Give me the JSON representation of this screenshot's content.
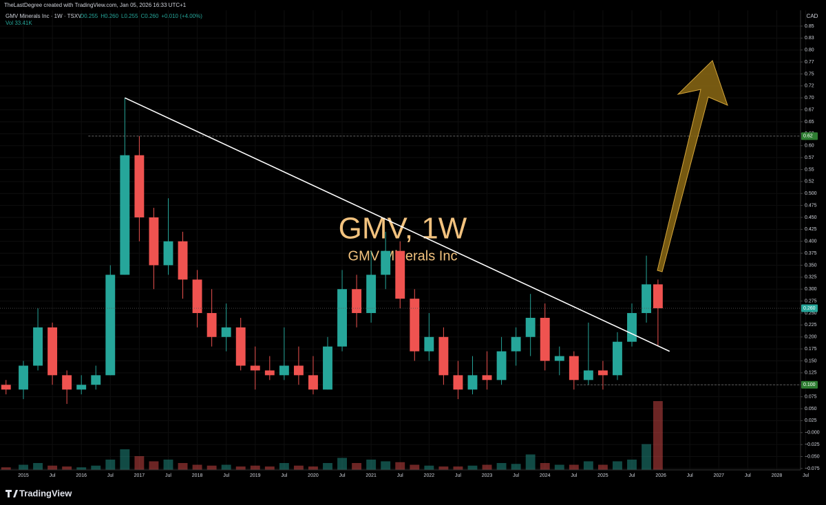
{
  "header": {
    "credit": "TheLastDegree created with TradingView.com, Jan 05, 2026 16:33 UTC+1",
    "symbol": "GMV Minerals Inc · 1W · TSXV",
    "ohlc": [
      "O0.255",
      "H0.260",
      "L0.255",
      "C0.260",
      "+0.010 (+4.00%)"
    ],
    "volume": "Vol 33.41K",
    "currency": "CAD"
  },
  "watermark": {
    "title": "GMV, 1W",
    "subtitle": "GMV Minerals Inc"
  },
  "footer": {
    "brand": "TradingView"
  },
  "chart_data": {
    "type": "candlestick",
    "x": [
      2014.7,
      2015.0,
      2015.25,
      2015.5,
      2015.75,
      2016.0,
      2016.25,
      2016.5,
      2016.75,
      2017.0,
      2017.25,
      2017.5,
      2017.75,
      2018.0,
      2018.25,
      2018.5,
      2018.75,
      2019.0,
      2019.25,
      2019.5,
      2019.75,
      2020.0,
      2020.25,
      2020.5,
      2020.75,
      2021.0,
      2021.25,
      2021.5,
      2021.75,
      2022.0,
      2022.25,
      2022.5,
      2022.75,
      2023.0,
      2023.25,
      2023.5,
      2023.75,
      2024.0,
      2024.25,
      2024.5,
      2024.75,
      2025.0,
      2025.25,
      2025.5,
      2025.75,
      2025.95
    ],
    "open": [
      0.1,
      0.09,
      0.14,
      0.22,
      0.12,
      0.09,
      0.1,
      0.12,
      0.33,
      0.58,
      0.45,
      0.35,
      0.4,
      0.32,
      0.25,
      0.2,
      0.22,
      0.14,
      0.13,
      0.12,
      0.14,
      0.12,
      0.09,
      0.18,
      0.3,
      0.25,
      0.33,
      0.38,
      0.28,
      0.17,
      0.2,
      0.12,
      0.09,
      0.12,
      0.11,
      0.17,
      0.2,
      0.24,
      0.15,
      0.16,
      0.11,
      0.13,
      0.12,
      0.19,
      0.25,
      0.31
    ],
    "high": [
      0.11,
      0.15,
      0.26,
      0.23,
      0.13,
      0.12,
      0.14,
      0.35,
      0.7,
      0.62,
      0.47,
      0.49,
      0.42,
      0.34,
      0.3,
      0.27,
      0.24,
      0.18,
      0.16,
      0.22,
      0.18,
      0.16,
      0.2,
      0.34,
      0.33,
      0.38,
      0.42,
      0.4,
      0.3,
      0.25,
      0.22,
      0.15,
      0.16,
      0.17,
      0.2,
      0.22,
      0.29,
      0.27,
      0.18,
      0.17,
      0.23,
      0.15,
      0.21,
      0.27,
      0.37,
      0.32
    ],
    "low": [
      0.08,
      0.07,
      0.13,
      0.1,
      0.06,
      0.08,
      0.09,
      0.12,
      0.33,
      0.4,
      0.3,
      0.33,
      0.28,
      0.22,
      0.18,
      0.17,
      0.13,
      0.09,
      0.11,
      0.11,
      0.1,
      0.08,
      0.09,
      0.17,
      0.22,
      0.23,
      0.3,
      0.26,
      0.15,
      0.15,
      0.1,
      0.07,
      0.08,
      0.09,
      0.1,
      0.14,
      0.16,
      0.13,
      0.12,
      0.09,
      0.1,
      0.09,
      0.11,
      0.18,
      0.23,
      0.18
    ],
    "close": [
      0.09,
      0.14,
      0.22,
      0.12,
      0.09,
      0.1,
      0.12,
      0.33,
      0.58,
      0.45,
      0.35,
      0.4,
      0.32,
      0.25,
      0.2,
      0.22,
      0.14,
      0.13,
      0.12,
      0.14,
      0.12,
      0.09,
      0.18,
      0.3,
      0.25,
      0.33,
      0.38,
      0.28,
      0.17,
      0.2,
      0.12,
      0.09,
      0.12,
      0.11,
      0.17,
      0.2,
      0.24,
      0.15,
      0.16,
      0.11,
      0.13,
      0.12,
      0.19,
      0.25,
      0.31,
      0.26
    ],
    "volume": [
      15000,
      30000,
      40000,
      25000,
      20000,
      15000,
      25000,
      60000,
      120000,
      80000,
      50000,
      60000,
      40000,
      30000,
      25000,
      30000,
      20000,
      25000,
      20000,
      40000,
      25000,
      20000,
      40000,
      70000,
      40000,
      60000,
      50000,
      45000,
      30000,
      25000,
      20000,
      20000,
      25000,
      30000,
      40000,
      35000,
      90000,
      40000,
      30000,
      30000,
      50000,
      30000,
      50000,
      60000,
      150000,
      400000
    ],
    "xlim": [
      2014.596,
      2028.41
    ],
    "ylim": [
      -0.078,
      0.883
    ],
    "xticks": [
      {
        "value": 2015,
        "label": "2015"
      },
      {
        "value": 2015.5,
        "label": "Jul"
      },
      {
        "value": 2016,
        "label": "2016"
      },
      {
        "value": 2016.5,
        "label": "Jul"
      },
      {
        "value": 2017,
        "label": "2017"
      },
      {
        "value": 2017.5,
        "label": "Jul"
      },
      {
        "value": 2018,
        "label": "2018"
      },
      {
        "value": 2018.5,
        "label": "Jul"
      },
      {
        "value": 2019,
        "label": "2019"
      },
      {
        "value": 2019.5,
        "label": "Jul"
      },
      {
        "value": 2020,
        "label": "2020"
      },
      {
        "value": 2020.5,
        "label": "Jul"
      },
      {
        "value": 2021,
        "label": "2021"
      },
      {
        "value": 2021.5,
        "label": "Jul"
      },
      {
        "value": 2022,
        "label": "2022"
      },
      {
        "value": 2022.5,
        "label": "Jul"
      },
      {
        "value": 2023,
        "label": "2023"
      },
      {
        "value": 2023.5,
        "label": "Jul"
      },
      {
        "value": 2024,
        "label": "2024"
      },
      {
        "value": 2024.5,
        "label": "Jul"
      },
      {
        "value": 2025,
        "label": "2025"
      },
      {
        "value": 2025.5,
        "label": "Jul"
      },
      {
        "value": 2026,
        "label": "2026"
      },
      {
        "value": 2026.5,
        "label": "Jul"
      },
      {
        "value": 2027,
        "label": "2027"
      },
      {
        "value": 2027.5,
        "label": "Jul"
      },
      {
        "value": 2028,
        "label": "2028"
      },
      {
        "value": 2028.5,
        "label": "Jul"
      }
    ],
    "yticks": [
      {
        "value": 0.85,
        "label": "0.85"
      },
      {
        "value": 0.825,
        "label": "0.83"
      },
      {
        "value": 0.8,
        "label": "0.80"
      },
      {
        "value": 0.775,
        "label": "0.77"
      },
      {
        "value": 0.75,
        "label": "0.75"
      },
      {
        "value": 0.725,
        "label": "0.72"
      },
      {
        "value": 0.7,
        "label": "0.70"
      },
      {
        "value": 0.675,
        "label": "0.67"
      },
      {
        "value": 0.65,
        "label": "0.65"
      },
      {
        "value": 0.625,
        "label": "0.62"
      },
      {
        "value": 0.6,
        "label": "0.60"
      },
      {
        "value": 0.575,
        "label": "0.57"
      },
      {
        "value": 0.55,
        "label": "0.55"
      },
      {
        "value": 0.525,
        "label": "0.52"
      },
      {
        "value": 0.5,
        "label": "0.500"
      },
      {
        "value": 0.475,
        "label": "0.475"
      },
      {
        "value": 0.45,
        "label": "0.450"
      },
      {
        "value": 0.425,
        "label": "0.425"
      },
      {
        "value": 0.4,
        "label": "0.400"
      },
      {
        "value": 0.375,
        "label": "0.375"
      },
      {
        "value": 0.35,
        "label": "0.350"
      },
      {
        "value": 0.325,
        "label": "0.325"
      },
      {
        "value": 0.3,
        "label": "0.300"
      },
      {
        "value": 0.275,
        "label": "0.275"
      },
      {
        "value": 0.25,
        "label": "0.250"
      },
      {
        "value": 0.225,
        "label": "0.225"
      },
      {
        "value": 0.2,
        "label": "0.200"
      },
      {
        "value": 0.175,
        "label": "0.175"
      },
      {
        "value": 0.15,
        "label": "0.150"
      },
      {
        "value": 0.125,
        "label": "0.125"
      },
      {
        "value": 0.1,
        "label": "0.100"
      },
      {
        "value": 0.075,
        "label": "0.075"
      },
      {
        "value": 0.05,
        "label": "0.050"
      },
      {
        "value": 0.025,
        "label": "0.025"
      },
      {
        "value": 0,
        "label": "−0.000"
      },
      {
        "value": -0.025,
        "label": "−0.025"
      },
      {
        "value": -0.05,
        "label": "−0.050"
      },
      {
        "value": -0.075,
        "label": "−0.075"
      }
    ],
    "grid": true,
    "up_color": "#26a69a",
    "down_color": "#ef5350",
    "trendline": {
      "x": [
        2016.75,
        2026.15
      ],
      "y": [
        0.7,
        0.17
      ],
      "color": "#ffffff"
    },
    "price_lines": [
      {
        "value": 0.62,
        "label": "0.62",
        "start": 2016.12,
        "style": "dashed",
        "color": "#2e7d32"
      },
      {
        "value": 0.26,
        "label": "0.260",
        "start": 2014.596,
        "style": "dotted",
        "color": "#26a69a"
      },
      {
        "value": 0.1,
        "label": "0.100",
        "start": 2024.55,
        "style": "dashed",
        "color": "#2e7d32"
      }
    ]
  }
}
